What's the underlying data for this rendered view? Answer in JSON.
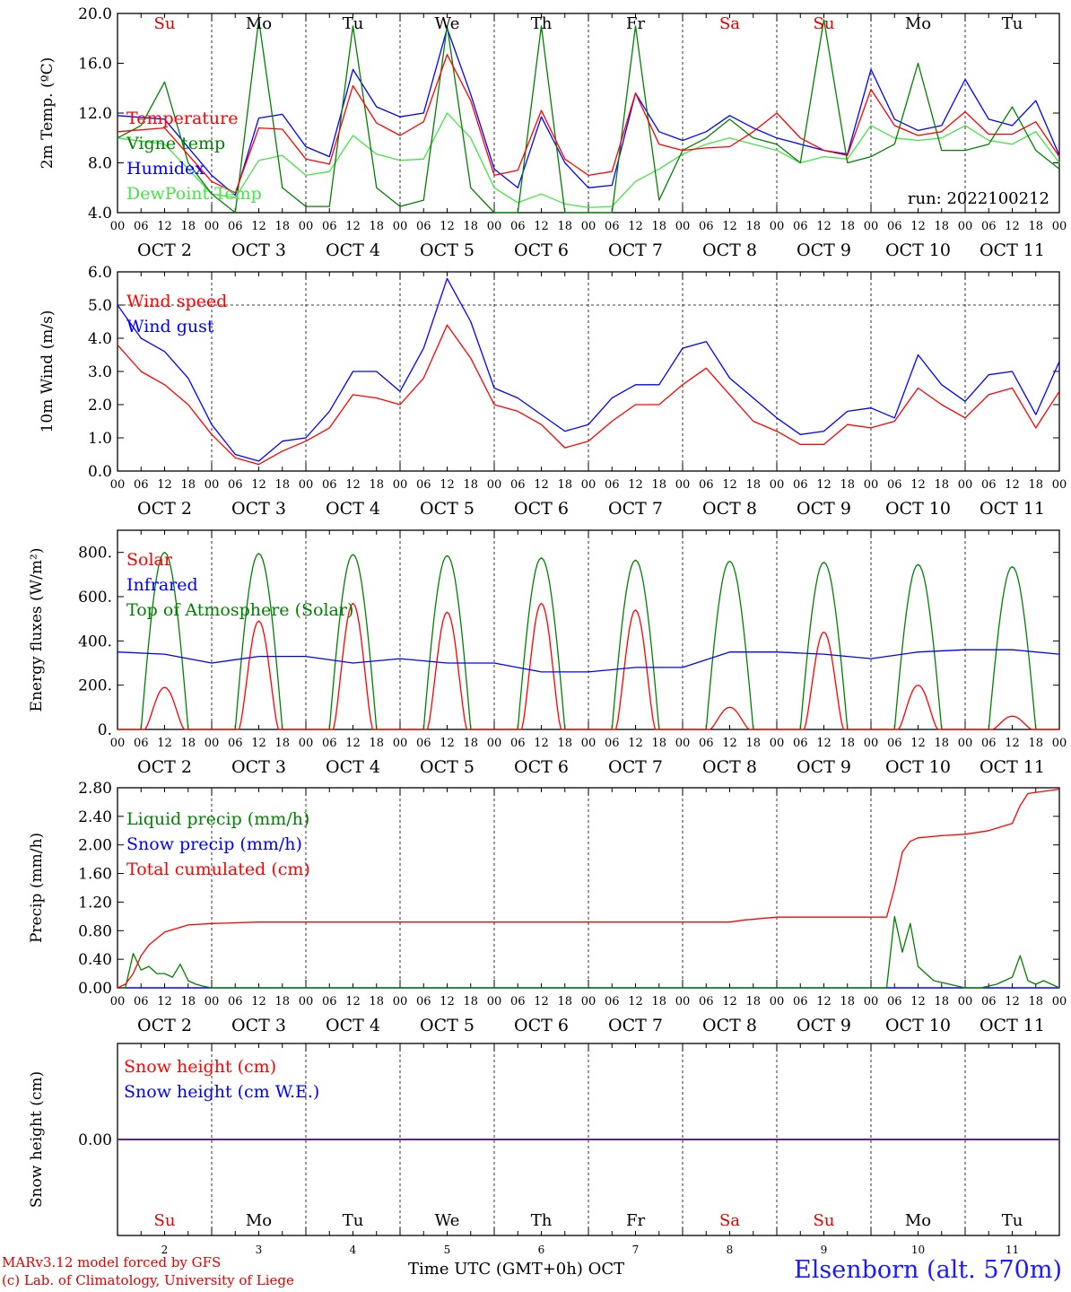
{
  "chart_data": [
    {
      "type": "line",
      "ylabel": "2m Temp. (ºC)",
      "ylim": [
        4.0,
        20.0
      ],
      "yticks": [
        "4.0",
        "8.0",
        "12.0",
        "16.0",
        "20.0"
      ],
      "top_day_labels": [
        "Su",
        "Mo",
        "Tu",
        "We",
        "Th",
        "Fr",
        "Sa",
        "Su",
        "Mo",
        "Tu"
      ],
      "date_labels": [
        "OCT  2",
        "OCT  3",
        "OCT  4",
        "OCT  5",
        "OCT  6",
        "OCT  7",
        "OCT  8",
        "OCT  9",
        "OCT 10",
        "OCT 11"
      ],
      "annotation": "run: 2022100212",
      "grid": "vertical dashed day separators",
      "series": [
        {
          "name": "Temperature",
          "color": "#ff0000",
          "x_hours": [
            0,
            12,
            24,
            30,
            36,
            42,
            48,
            54,
            60,
            66,
            72,
            78,
            84,
            90,
            96,
            102,
            108,
            114,
            120,
            126,
            132,
            138,
            144,
            150,
            156,
            162,
            168,
            174,
            180,
            186,
            192,
            198,
            204,
            210,
            216,
            222,
            228,
            234,
            240
          ],
          "values": [
            10.5,
            10.8,
            6.5,
            5.6,
            10.8,
            10.7,
            8.3,
            7.9,
            14.2,
            11.2,
            10.2,
            11.3,
            16.7,
            13.0,
            7.0,
            7.4,
            12.2,
            8.3,
            7.0,
            7.3,
            13.6,
            9.5,
            9.0,
            9.2,
            9.3,
            10.5,
            12.0,
            10.0,
            9.0,
            8.6,
            13.9,
            11.0,
            10.2,
            10.5,
            12.1,
            10.3,
            10.3,
            11.3,
            8.5
          ]
        },
        {
          "name": "Vigne temp",
          "color": "#008000",
          "x_hours": [
            0,
            6,
            12,
            18,
            24,
            30,
            36,
            42,
            48,
            54,
            60,
            66,
            72,
            78,
            84,
            90,
            96,
            102,
            108,
            114,
            120,
            126,
            132,
            138,
            144,
            150,
            156,
            162,
            168,
            174,
            180,
            186,
            192,
            198,
            204,
            210,
            216,
            222,
            228,
            234,
            240
          ],
          "values": [
            10.0,
            11.0,
            14.5,
            8.0,
            5.5,
            4.0,
            19.5,
            6.0,
            4.5,
            4.5,
            19.0,
            6.0,
            4.5,
            5.0,
            19.0,
            6.0,
            4.0,
            4.0,
            19.0,
            4.0,
            4.0,
            4.0,
            19.0,
            5.0,
            9.0,
            10.0,
            11.5,
            10.0,
            9.5,
            8.0,
            19.5,
            8.0,
            8.5,
            9.5,
            16.0,
            9.0,
            9.0,
            9.5,
            12.5,
            9.0,
            7.5
          ]
        },
        {
          "name": "Humidex",
          "color": "#0000ff",
          "x_hours": [
            0,
            12,
            24,
            30,
            36,
            42,
            48,
            54,
            60,
            66,
            72,
            78,
            84,
            90,
            96,
            102,
            108,
            114,
            120,
            126,
            132,
            138,
            144,
            150,
            156,
            162,
            168,
            174,
            180,
            186,
            192,
            198,
            204,
            210,
            216,
            222,
            228,
            234,
            240
          ],
          "values": [
            11.8,
            11.5,
            7.0,
            5.4,
            11.6,
            11.9,
            9.3,
            8.5,
            15.5,
            12.5,
            11.7,
            12.0,
            18.8,
            13.5,
            7.5,
            6.0,
            11.7,
            8.0,
            6.0,
            6.2,
            13.6,
            10.5,
            9.8,
            10.5,
            11.8,
            10.8,
            10.0,
            9.5,
            9.0,
            8.7,
            15.5,
            11.5,
            10.6,
            11.0,
            14.7,
            11.5,
            11.0,
            13.0,
            8.6
          ]
        },
        {
          "name": "DewPoint Temp",
          "color": "#44e444",
          "x_hours": [
            0,
            12,
            24,
            30,
            36,
            42,
            48,
            54,
            60,
            66,
            72,
            78,
            84,
            90,
            96,
            102,
            108,
            114,
            120,
            126,
            132,
            138,
            144,
            150,
            156,
            162,
            168,
            174,
            180,
            186,
            192,
            198,
            204,
            210,
            216,
            222,
            228,
            234,
            240
          ],
          "values": [
            10.0,
            9.5,
            5.5,
            5.2,
            8.2,
            8.6,
            7.0,
            7.3,
            10.2,
            8.7,
            8.2,
            8.3,
            12.0,
            10.0,
            6.0,
            4.8,
            5.5,
            4.7,
            4.4,
            4.5,
            6.5,
            7.5,
            8.7,
            9.5,
            10.0,
            9.5,
            9.0,
            8.0,
            8.5,
            8.3,
            11.0,
            10.0,
            9.8,
            10.0,
            11.0,
            9.8,
            9.5,
            10.5,
            8.0
          ]
        }
      ]
    },
    {
      "type": "line",
      "ylabel": "10m Wind (m/s)",
      "ylim": [
        0.0,
        6.0
      ],
      "yticks": [
        "0.0",
        "1.0",
        "2.0",
        "3.0",
        "4.0",
        "5.0",
        "6.0"
      ],
      "reference_line": 5.0,
      "date_labels": [
        "OCT  2",
        "OCT  3",
        "OCT  4",
        "OCT  5",
        "OCT  6",
        "OCT  7",
        "OCT  8",
        "OCT  9",
        "OCT 10",
        "OCT 11"
      ],
      "series": [
        {
          "name": "Wind speed",
          "color": "#ff0000",
          "x_hours": [
            0,
            6,
            12,
            18,
            24,
            30,
            36,
            42,
            48,
            54,
            60,
            66,
            72,
            78,
            84,
            90,
            96,
            102,
            108,
            114,
            120,
            126,
            132,
            138,
            144,
            150,
            156,
            162,
            168,
            174,
            180,
            186,
            192,
            198,
            204,
            210,
            216,
            222,
            228,
            234,
            240
          ],
          "values": [
            3.8,
            3.0,
            2.6,
            2.0,
            1.1,
            0.4,
            0.2,
            0.6,
            0.9,
            1.3,
            2.3,
            2.2,
            2.0,
            2.8,
            4.4,
            3.4,
            2.0,
            1.8,
            1.4,
            0.7,
            0.9,
            1.5,
            2.0,
            2.0,
            2.6,
            3.1,
            2.3,
            1.5,
            1.2,
            0.8,
            0.8,
            1.4,
            1.3,
            1.5,
            2.5,
            2.0,
            1.6,
            2.3,
            2.5,
            1.3,
            2.4
          ]
        },
        {
          "name": "Wind gust",
          "color": "#0000ff",
          "x_hours": [
            0,
            6,
            12,
            18,
            24,
            30,
            36,
            42,
            48,
            54,
            60,
            66,
            72,
            78,
            84,
            90,
            96,
            102,
            108,
            114,
            120,
            126,
            132,
            138,
            144,
            150,
            156,
            162,
            168,
            174,
            180,
            186,
            192,
            198,
            204,
            210,
            216,
            222,
            228,
            234,
            240
          ],
          "values": [
            5.0,
            4.0,
            3.6,
            2.8,
            1.4,
            0.5,
            0.3,
            0.9,
            1.0,
            1.8,
            3.0,
            3.0,
            2.4,
            3.7,
            5.8,
            4.5,
            2.5,
            2.2,
            1.7,
            1.2,
            1.4,
            2.2,
            2.6,
            2.6,
            3.7,
            3.9,
            2.8,
            2.2,
            1.6,
            1.1,
            1.2,
            1.8,
            1.9,
            1.6,
            3.5,
            2.6,
            2.1,
            2.9,
            3.0,
            1.7,
            3.3
          ]
        }
      ]
    },
    {
      "type": "line",
      "ylabel": "Energy fluxes (W/m²)",
      "ylim": [
        0,
        900
      ],
      "yticks": [
        "0.",
        "200.",
        "400.",
        "600.",
        "800."
      ],
      "date_labels": [
        "OCT  2",
        "OCT  3",
        "OCT  4",
        "OCT  5",
        "OCT  6",
        "OCT  7",
        "OCT  8",
        "OCT  9",
        "OCT 10",
        "OCT 11"
      ],
      "series": [
        {
          "name": "Solar",
          "color": "#ff0000",
          "daily_peaks": [
            190,
            490,
            570,
            530,
            570,
            540,
            100,
            440,
            200,
            60
          ]
        },
        {
          "name": "Infrared",
          "color": "#0000ff",
          "x_hours": [
            0,
            12,
            24,
            36,
            48,
            60,
            72,
            84,
            96,
            108,
            120,
            132,
            144,
            156,
            168,
            180,
            192,
            204,
            216,
            228,
            240
          ],
          "values": [
            350,
            340,
            300,
            330,
            330,
            300,
            320,
            300,
            300,
            260,
            260,
            280,
            280,
            350,
            350,
            340,
            320,
            350,
            360,
            360,
            340
          ]
        },
        {
          "name": "Top of Atmosphere (Solar)",
          "color": "#008000",
          "daily_peaks": [
            800,
            795,
            790,
            785,
            775,
            765,
            760,
            755,
            745,
            735
          ]
        }
      ]
    },
    {
      "type": "line",
      "ylabel": "Precip (mm/h)",
      "ylim": [
        0.0,
        2.8
      ],
      "yticks": [
        "0.00",
        "0.40",
        "0.80",
        "1.20",
        "1.60",
        "2.00",
        "2.40",
        "2.80"
      ],
      "date_labels": [
        "OCT  2",
        "OCT  3",
        "OCT  4",
        "OCT  5",
        "OCT  6",
        "OCT  7",
        "OCT  8",
        "OCT  9",
        "OCT 10",
        "OCT 11"
      ],
      "series": [
        {
          "name": "Liquid precip (mm/h)",
          "color": "#008000",
          "x_hours": [
            0,
            2,
            4,
            6,
            8,
            10,
            12,
            14,
            16,
            18,
            20,
            22,
            24,
            60,
            120,
            168,
            196,
            198,
            200,
            202,
            204,
            206,
            208,
            212,
            216,
            220,
            224,
            228,
            230,
            232,
            234,
            236,
            238,
            240
          ],
          "values": [
            0,
            0,
            0.48,
            0.25,
            0.3,
            0.2,
            0.2,
            0.15,
            0.33,
            0.1,
            0.05,
            0.02,
            0,
            0,
            0,
            0,
            0,
            1.0,
            0.5,
            0.9,
            0.3,
            0.2,
            0.1,
            0.05,
            0,
            0,
            0.05,
            0.15,
            0.45,
            0.1,
            0.05,
            0.1,
            0.05,
            0
          ]
        },
        {
          "name": "Snow precip (mm/h)",
          "color": "#0000ff",
          "x_hours": [
            0,
            240
          ],
          "values": [
            0,
            0
          ]
        },
        {
          "name": "Total cumulated (cm)",
          "color": "#ff0000",
          "x_hours": [
            0,
            2,
            4,
            6,
            8,
            12,
            18,
            24,
            36,
            60,
            96,
            120,
            144,
            156,
            160,
            168,
            180,
            192,
            196,
            198,
            200,
            202,
            204,
            210,
            216,
            222,
            228,
            230,
            232,
            240
          ],
          "values": [
            0,
            0.05,
            0.2,
            0.45,
            0.6,
            0.78,
            0.88,
            0.9,
            0.92,
            0.92,
            0.92,
            0.92,
            0.92,
            0.92,
            0.95,
            0.99,
            0.99,
            0.99,
            0.99,
            1.4,
            1.9,
            2.05,
            2.1,
            2.13,
            2.15,
            2.2,
            2.3,
            2.55,
            2.72,
            2.78
          ]
        }
      ]
    },
    {
      "type": "line",
      "ylabel": "Snow height (cm)",
      "yticks": [
        "0.00"
      ],
      "bottom_day_labels": [
        "Su",
        "Mo",
        "Tu",
        "We",
        "Th",
        "Fr",
        "Sa",
        "Su",
        "Mo",
        "Tu"
      ],
      "x_day_numbers": [
        "2",
        "3",
        "4",
        "5",
        "6",
        "7",
        "8",
        "9",
        "10",
        "11"
      ],
      "xlabel": "Time UTC (GMT+0h) OCT",
      "series": [
        {
          "name": "Snow height (cm)",
          "color": "#ff0000",
          "x_hours": [
            0,
            240
          ],
          "values": [
            0,
            0
          ]
        },
        {
          "name": "Snow height (cm W.E.)",
          "color": "#0000ff",
          "x_hours": [
            0,
            240
          ],
          "values": [
            0,
            0
          ]
        }
      ]
    }
  ],
  "hour_tick_labels": [
    "00",
    "06",
    "12",
    "18"
  ],
  "day_label_colors": {
    "weekend": "#e00000",
    "weekday": "#000000"
  },
  "footer": {
    "model_line": "MARv3.12 model forced by GFS",
    "copyright_line": "(c) Lab. of Climatology, University of Liege",
    "station": "Elsenborn (alt. 570m)"
  }
}
